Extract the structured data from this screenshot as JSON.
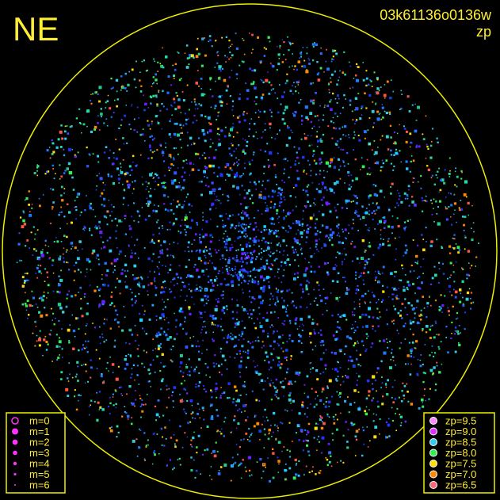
{
  "corner_label": "NE",
  "header": {
    "id": "03k61136o0136w",
    "metric": "zp"
  },
  "magnitude_legend": [
    "m=0",
    "m=1",
    "m=2",
    "m=3",
    "m=4",
    "m=5",
    "m=6"
  ],
  "zp_legend": [
    {
      "label": "zp=9.5",
      "color": "#ff88ff"
    },
    {
      "label": "zp=9.0",
      "color": "#dd33ff"
    },
    {
      "label": "zp=8.5",
      "color": "#33ccee"
    },
    {
      "label": "zp=8.0",
      "color": "#33ee55"
    },
    {
      "label": "zp=7.5",
      "color": "#ffdd00"
    },
    {
      "label": "zp=7.0",
      "color": "#ff8800"
    },
    {
      "label": "zp=6.5",
      "color": "#ff6677"
    }
  ]
}
